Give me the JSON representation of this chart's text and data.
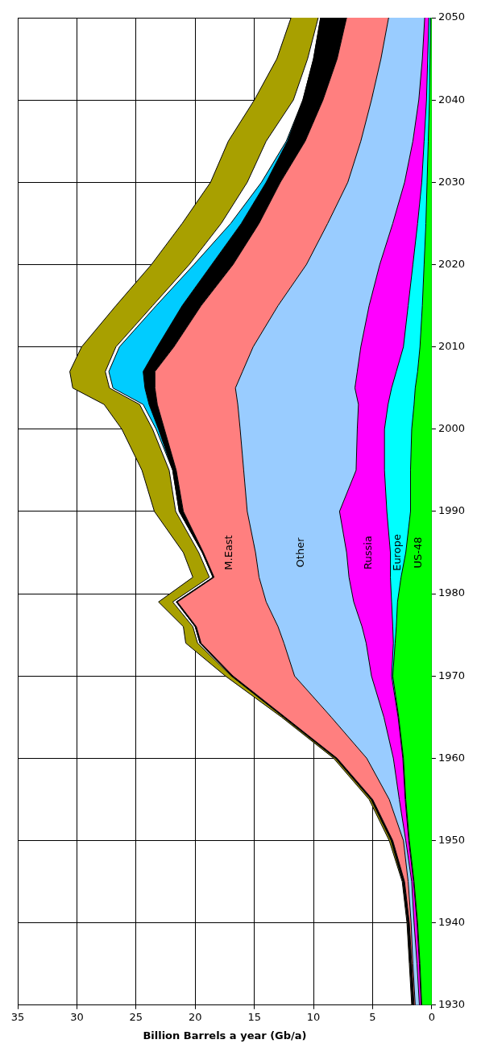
{
  "chart_data": {
    "type": "area",
    "stacked": true,
    "orientation": "horizontal",
    "xlabel": "Billion Barrels a year (Gb/a)",
    "x": [
      1930,
      1935,
      1940,
      1945,
      1950,
      1955,
      1960,
      1965,
      1970,
      1974,
      1976,
      1979,
      1982,
      1985,
      1990,
      1995,
      2000,
      2003,
      2005,
      2007,
      2010,
      2015,
      2020,
      2025,
      2030,
      2035,
      2040,
      2045,
      2050
    ],
    "series": [
      {
        "name": "US-48",
        "color": "#00ff00",
        "values": [
          0.85,
          1.0,
          1.2,
          1.5,
          1.9,
          2.2,
          2.4,
          2.8,
          3.3,
          3.1,
          3.0,
          2.9,
          2.6,
          2.2,
          1.8,
          1.8,
          1.7,
          1.5,
          1.4,
          1.2,
          1.0,
          0.8,
          0.65,
          0.5,
          0.4,
          0.3,
          0.2,
          0.15,
          0.1
        ]
      },
      {
        "name": "Europe",
        "color": "#00ffff",
        "values": [
          0.05,
          0.05,
          0.05,
          0.05,
          0.05,
          0.05,
          0.05,
          0.05,
          0.1,
          0.15,
          0.3,
          0.5,
          0.9,
          1.3,
          2.0,
          2.2,
          2.3,
          2.2,
          2.0,
          1.8,
          1.4,
          1.2,
          0.95,
          0.7,
          0.45,
          0.35,
          0.25,
          0.2,
          0.15
        ]
      },
      {
        "name": "Russia",
        "color": "#ff00ff",
        "values": [
          0.15,
          0.2,
          0.25,
          0.15,
          0.25,
          0.5,
          0.8,
          1.2,
          1.7,
          2.3,
          2.6,
          3.2,
          3.5,
          3.7,
          4.0,
          2.4,
          2.3,
          2.5,
          3.1,
          3.3,
          3.6,
          3.3,
          2.8,
          2.1,
          1.45,
          0.95,
          0.65,
          0.45,
          0.35
        ]
      },
      {
        "name": "Other",
        "color": "#99ccff",
        "values": [
          0.35,
          0.35,
          0.25,
          0.3,
          0.2,
          0.85,
          2.25,
          4.45,
          6.5,
          6.95,
          7.1,
          7.4,
          7.6,
          7.7,
          7.8,
          9.5,
          9.9,
          10.2,
          10.1,
          9.7,
          9.1,
          7.7,
          6.2,
          5.5,
          4.8,
          4.4,
          4.0,
          3.5,
          3.05
        ]
      },
      {
        "name": "M.East",
        "color": "#ff7f7f",
        "values": [
          0.1,
          0.1,
          0.15,
          0.3,
          0.9,
          1.4,
          2.5,
          3.9,
          5.2,
          7.0,
          6.9,
          7.5,
          3.8,
          4.4,
          5.4,
          5.7,
          6.4,
          6.8,
          6.8,
          7.4,
          6.7,
          6.5,
          6.2,
          5.8,
          5.7,
          4.7,
          4.1,
          3.7,
          3.55
        ]
      },
      {
        "color": "#000000",
        "values": [
          0.1,
          0.1,
          0.1,
          0.1,
          0.1,
          0.1,
          0.1,
          0.1,
          0.1,
          0.1,
          0.1,
          0.1,
          0.1,
          0.1,
          0.35,
          0.3,
          0.5,
          0.7,
          0.85,
          1.0,
          1.4,
          1.6,
          1.8,
          1.5,
          1.2,
          1.5,
          1.7,
          2.0,
          2.2
        ]
      },
      {
        "color": "#00ccff",
        "values": [
          0,
          0,
          0,
          0,
          0,
          0,
          0,
          0,
          0,
          0,
          0,
          0,
          0,
          0,
          0,
          0,
          0.2,
          0.5,
          2.7,
          2.9,
          3.2,
          2.2,
          1.5,
          0.9,
          0.4,
          0.1,
          0,
          0,
          0
        ]
      },
      {
        "color": "#ffffff",
        "values": [
          0.05,
          0.05,
          0.05,
          0.05,
          0.05,
          0.05,
          0.05,
          0.05,
          0.05,
          0.2,
          0.2,
          0.3,
          0.3,
          0.3,
          0.3,
          0.3,
          0.3,
          0.3,
          0.3,
          0.3,
          0.3,
          0.3,
          0.4,
          0.8,
          1.2,
          1.7,
          0.8,
          0.5,
          0.2
        ]
      },
      {
        "color": "#a8a000",
        "values": [
          0.05,
          0.05,
          0.05,
          0.05,
          0.15,
          0.15,
          0.15,
          0.15,
          0.5,
          1.0,
          0.8,
          1.2,
          1.4,
          1.3,
          1.8,
          2.3,
          2.6,
          3.0,
          3.1,
          3.0,
          2.9,
          3.1,
          3.2,
          3.3,
          3.1,
          3.2,
          3.3,
          2.6,
          2.3
        ]
      }
    ],
    "ylim": [
      1930,
      2050
    ],
    "yticks": [
      1930,
      1940,
      1950,
      1960,
      1970,
      1980,
      1990,
      2000,
      2010,
      2020,
      2030,
      2040,
      2050
    ],
    "xlim": [
      35,
      0
    ],
    "xticks": [
      0,
      5,
      10,
      15,
      20,
      25,
      30,
      35
    ],
    "grid": true,
    "legend": false
  }
}
